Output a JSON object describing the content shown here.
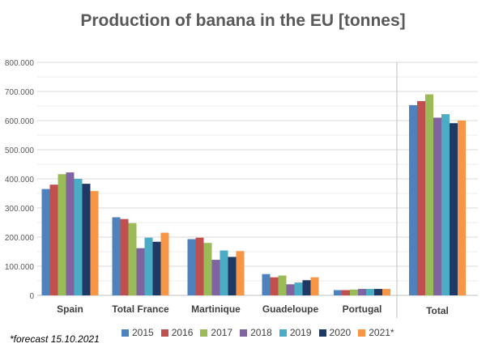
{
  "chart_data": {
    "type": "bar",
    "title": "Production of banana in the EU [tonnes]",
    "footnote": "*forecast 15.10.2021",
    "categories": [
      "Spain",
      "Total France",
      "Martinique",
      "Guadeloupe",
      "Portugal",
      "Total"
    ],
    "ylim": [
      0,
      800000
    ],
    "yticks": [
      "0",
      "100.000",
      "200.000",
      "300.000",
      "400.000",
      "500.000",
      "600.000",
      "700.000",
      "800.000"
    ],
    "grid": true,
    "legend_position": "bottom",
    "series": [
      {
        "name": "2015",
        "color": "#4F81BD",
        "values": [
          365000,
          268000,
          193000,
          73000,
          18000,
          653000
        ]
      },
      {
        "name": "2016",
        "color": "#C0504D",
        "values": [
          380000,
          262000,
          198000,
          62000,
          18000,
          667000
        ]
      },
      {
        "name": "2017",
        "color": "#9BBB59",
        "values": [
          416000,
          248000,
          180000,
          68000,
          20000,
          690000
        ]
      },
      {
        "name": "2018",
        "color": "#8064A2",
        "values": [
          422000,
          162000,
          122000,
          38000,
          22000,
          610000
        ]
      },
      {
        "name": "2019",
        "color": "#4BACC6",
        "values": [
          400000,
          198000,
          154000,
          44000,
          22000,
          622000
        ]
      },
      {
        "name": "2020",
        "color": "#1F3864",
        "values": [
          383000,
          184000,
          132000,
          52000,
          22000,
          591000
        ]
      },
      {
        "name": "2021*",
        "color": "#F79646",
        "values": [
          358000,
          215000,
          152000,
          62000,
          22000,
          600000
        ]
      }
    ]
  }
}
